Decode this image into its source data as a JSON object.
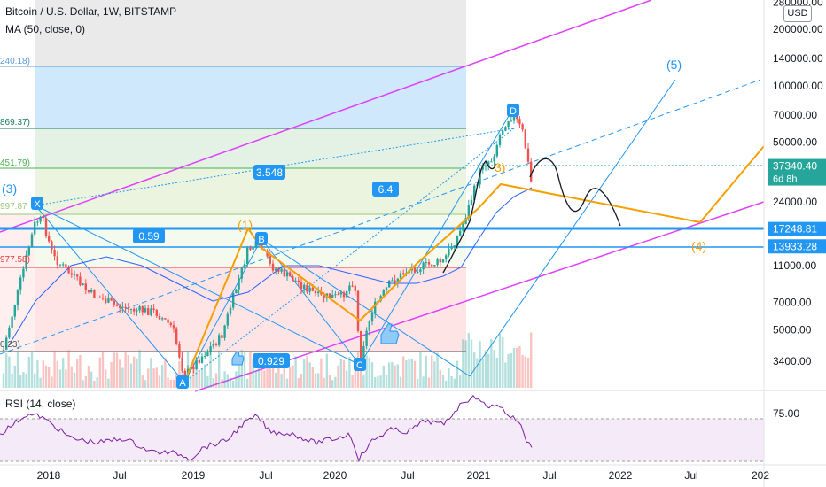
{
  "header": {
    "title": "Bitcoin / U.S. Dollar, 1W, BITSTAMP",
    "ma_label": "MA (50, close, 0)",
    "rsi_label": "RSI (14, close)",
    "currency": "USD"
  },
  "chart_data": {
    "type": "candlestick",
    "title": "Bitcoin / U.S. Dollar, 1W, BITSTAMP",
    "scale": "log",
    "y_tick_labels": [
      "280000.00",
      "200000.00",
      "140000.00",
      "100000.00",
      "70000.00",
      "50000.00",
      "24000.00",
      "11000.00",
      "7000.00",
      "5000.00",
      "3400.00"
    ],
    "y_tick_values": [
      280000,
      200000,
      140000,
      100000,
      70000,
      50000,
      24000,
      11000,
      7000,
      5000,
      3400
    ],
    "x_tick_labels": [
      "2018",
      "Jul",
      "2019",
      "Jul",
      "2020",
      "Jul",
      "2021",
      "Jul",
      "2022",
      "Jul",
      "202"
    ],
    "price_badges": [
      {
        "label": "37340.40",
        "sub": "6d 8h",
        "value": 37340.4,
        "color": "#26a69a"
      },
      {
        "label": "17248.81",
        "value": 17248.81,
        "color": "#2196f3"
      },
      {
        "label": "13933.28",
        "value": 13933.28,
        "color": "#2196f3"
      }
    ],
    "rsi_tick": {
      "label": "75.00",
      "value": 75
    },
    "fib_labels": [
      {
        "label": "240.18)",
        "color": "#5b9bd5"
      },
      {
        "label": "869.37)",
        "color": "#1b7a5f"
      },
      {
        "label": "451.79)",
        "color": "#4caf50"
      },
      {
        "label": "997.87",
        "color": "#9bc77a"
      },
      {
        "label": "977.58)",
        "color": "#e53935"
      },
      {
        "label": "0.23)",
        "color": "#555555"
      }
    ],
    "ratio_labels": [
      "3.548",
      "6.4",
      "0.59",
      "0.929"
    ],
    "pattern_points": [
      "X",
      "A",
      "B",
      "C",
      "D"
    ],
    "wave_labels": [
      "(3)",
      "(1)",
      "3)",
      "(4)",
      "(5)"
    ],
    "annotation_colors": {
      "pink_channel": "#e040fb",
      "blue_line": "#2196f3",
      "orange_path": "#f59f00",
      "candle_up": "#26a69a",
      "candle_down": "#ef5350",
      "ma_line": "#2962ff",
      "rsi_line": "#7b1fa2"
    }
  }
}
